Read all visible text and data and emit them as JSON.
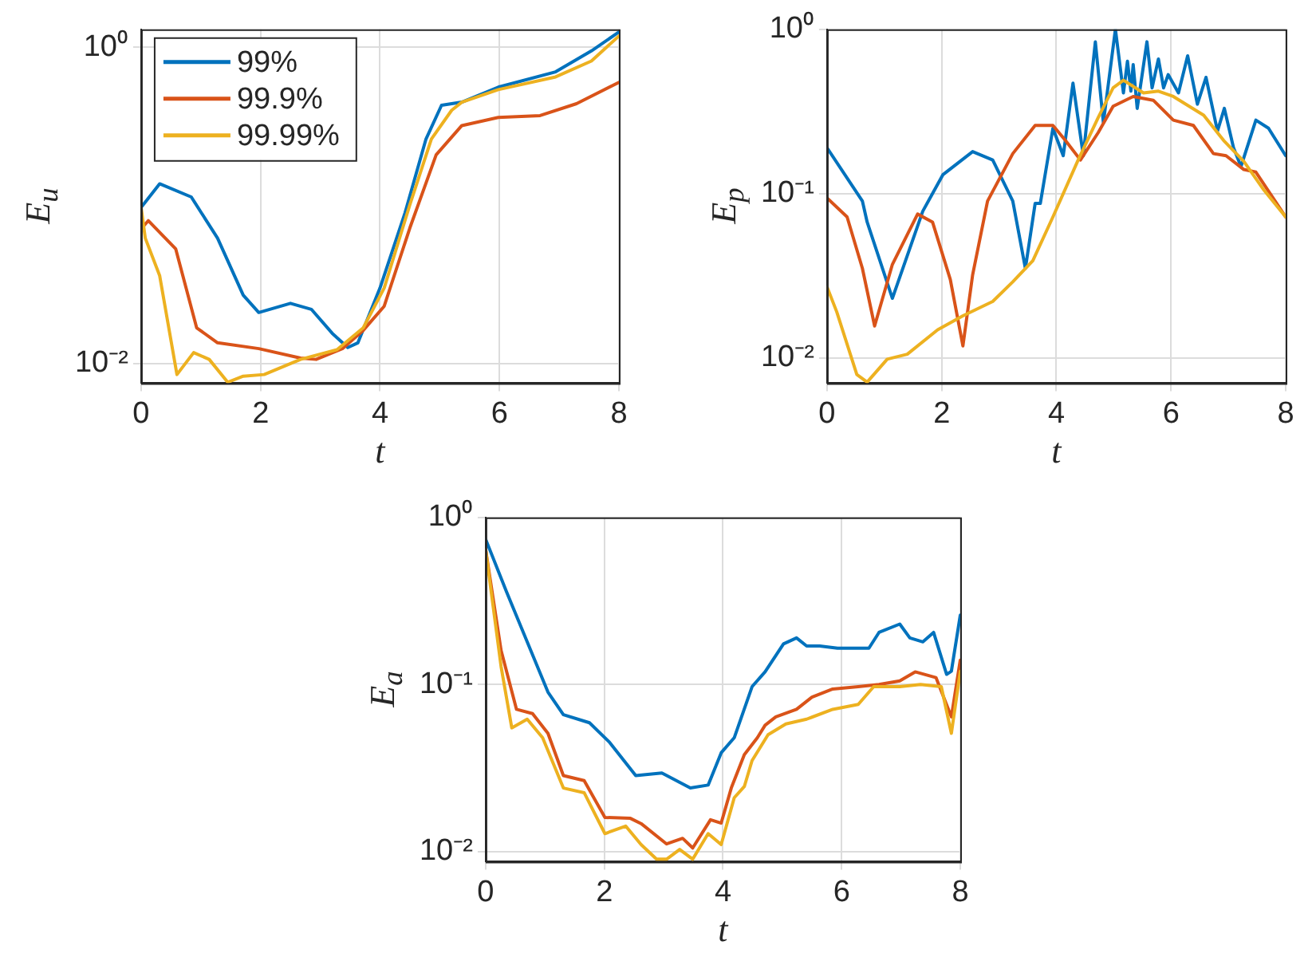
{
  "chart_data": [
    {
      "type": "line",
      "xlabel": "t",
      "ylabel": "E$_{u}$",
      "xlim": [
        0,
        8
      ],
      "xticks": [
        0,
        2,
        4,
        6,
        8
      ],
      "ylim": [
        0.0075,
        1.3
      ],
      "yticks": [
        {
          "value": 0.01,
          "label": "10⁻²"
        },
        {
          "value": 1,
          "label": "10⁰"
        }
      ],
      "log": "y",
      "grid": true,
      "legend": "top left",
      "series": [
        {
          "name": "99%",
          "color": "#0072bd",
          "x": [
            0,
            0.31,
            0.84,
            1.28,
            1.71,
            1.97,
            2.5,
            2.85,
            3.2,
            3.46,
            3.63,
            4,
            4.42,
            4.77,
            5.03,
            5.37,
            5.98,
            6.94,
            7.54,
            8
          ],
          "values": [
            0.097,
            0.137,
            0.113,
            0.062,
            0.027,
            0.021,
            0.024,
            0.022,
            0.0155,
            0.0126,
            0.0135,
            0.03,
            0.09,
            0.263,
            0.43,
            0.45,
            0.56,
            0.7,
            0.95,
            1.25
          ]
        },
        {
          "name": "99.9%",
          "color": "#d95319",
          "x": [
            0,
            0.12,
            0.58,
            0.93,
            1.28,
            1.97,
            2.67,
            2.93,
            3.37,
            3.72,
            4.07,
            4.5,
            4.94,
            5.37,
            5.98,
            6.68,
            7.29,
            8
          ],
          "values": [
            0.071,
            0.08,
            0.053,
            0.0168,
            0.0135,
            0.0124,
            0.0108,
            0.0106,
            0.0124,
            0.0162,
            0.023,
            0.072,
            0.209,
            0.32,
            0.36,
            0.37,
            0.44,
            0.6
          ]
        },
        {
          "name": "99.99%",
          "color": "#edb120",
          "x": [
            0,
            0.07,
            0.31,
            0.6,
            0.88,
            1.14,
            1.45,
            1.71,
            2.06,
            2.67,
            3.28,
            3.72,
            4.07,
            4.5,
            4.86,
            5.2,
            5.37,
            5.98,
            6.94,
            7.54,
            8
          ],
          "values": [
            0.097,
            0.062,
            0.036,
            0.0085,
            0.0117,
            0.0106,
            0.0076,
            0.0083,
            0.0085,
            0.0106,
            0.0122,
            0.0168,
            0.03,
            0.101,
            0.263,
            0.4,
            0.45,
            0.54,
            0.65,
            0.82,
            1.18
          ]
        }
      ]
    },
    {
      "type": "line",
      "xlabel": "t",
      "ylabel": "E$_{p}$",
      "xlim": [
        0,
        8
      ],
      "xticks": [
        0,
        2,
        4,
        6,
        8
      ],
      "ylim": [
        0.007,
        1
      ],
      "yticks": [
        {
          "value": 0.01,
          "label": "10⁻²"
        },
        {
          "value": 0.1,
          "label": "10⁻¹"
        },
        {
          "value": 1,
          "label": "10⁰"
        }
      ],
      "log": "y",
      "grid": true,
      "series": [
        {
          "color": "#0072bd",
          "x": [
            0,
            0.617,
            0.7,
            1.14,
            1.67,
            2.02,
            2.54,
            2.89,
            3.24,
            3.46,
            3.63,
            3.72,
            3.94,
            4.12,
            4.29,
            4.47,
            4.68,
            4.82,
            5.03,
            5.17,
            5.24,
            5.3,
            5.34,
            5.41,
            5.58,
            5.67,
            5.78,
            5.87,
            5.95,
            6.13,
            6.29,
            6.46,
            6.61,
            6.81,
            6.93,
            7.09,
            7.22,
            7.48,
            7.7,
            8
          ],
          "values": [
            0.19,
            0.09,
            0.067,
            0.023,
            0.078,
            0.13,
            0.18,
            0.16,
            0.09,
            0.035,
            0.087,
            0.087,
            0.25,
            0.17,
            0.47,
            0.17,
            0.84,
            0.27,
            1.0,
            0.41,
            0.64,
            0.42,
            0.61,
            0.33,
            0.84,
            0.44,
            0.66,
            0.44,
            0.53,
            0.41,
            0.69,
            0.35,
            0.51,
            0.24,
            0.33,
            0.19,
            0.146,
            0.28,
            0.25,
            0.17
          ]
        },
        {
          "color": "#d95319",
          "x": [
            0,
            0.35,
            0.617,
            0.83,
            1.14,
            1.58,
            1.84,
            2.15,
            2.37,
            2.54,
            2.8,
            3.24,
            3.63,
            3.94,
            4.16,
            4.42,
            4.73,
            4.99,
            5.34,
            5.69,
            6.04,
            6.39,
            6.74,
            6.96,
            7.27,
            7.48,
            8
          ],
          "values": [
            0.094,
            0.072,
            0.035,
            0.0156,
            0.037,
            0.075,
            0.067,
            0.03,
            0.0118,
            0.032,
            0.09,
            0.175,
            0.26,
            0.26,
            0.21,
            0.16,
            0.235,
            0.34,
            0.39,
            0.37,
            0.28,
            0.26,
            0.175,
            0.17,
            0.14,
            0.135,
            0.072
          ]
        },
        {
          "color": "#edb120",
          "x": [
            0,
            0.17,
            0.52,
            0.7,
            1.05,
            1.4,
            1.93,
            2.37,
            2.89,
            3.24,
            3.59,
            3.94,
            4.38,
            4.73,
            4.99,
            5.17,
            5.52,
            5.78,
            6.04,
            6.57,
            6.92,
            7.27,
            7.62,
            8
          ],
          "values": [
            0.027,
            0.019,
            0.0079,
            0.0071,
            0.0098,
            0.0105,
            0.0148,
            0.018,
            0.022,
            0.029,
            0.039,
            0.072,
            0.16,
            0.29,
            0.44,
            0.49,
            0.41,
            0.42,
            0.39,
            0.3,
            0.21,
            0.157,
            0.105,
            0.072
          ]
        }
      ]
    },
    {
      "type": "line",
      "xlabel": "t",
      "ylabel": "E$_{a}$",
      "xlim": [
        0,
        8
      ],
      "xticks": [
        0,
        2,
        4,
        6,
        8
      ],
      "ylim": [
        0.0087,
        1
      ],
      "yticks": [
        {
          "value": 0.01,
          "label": "10⁻²"
        },
        {
          "value": 0.1,
          "label": "10⁻¹"
        },
        {
          "value": 1,
          "label": "10⁰"
        }
      ],
      "log": "y",
      "grid": true,
      "series": [
        {
          "color": "#0072bd",
          "x": [
            0,
            0.35,
            0.7,
            1.05,
            1.31,
            1.75,
            2.09,
            2.53,
            2.97,
            3.45,
            3.75,
            3.97,
            4.19,
            4.49,
            4.71,
            5.02,
            5.24,
            5.41,
            5.63,
            5.93,
            6.46,
            6.63,
            6.98,
            7.15,
            7.37,
            7.55,
            7.77,
            7.85,
            8
          ],
          "values": [
            0.74,
            0.36,
            0.18,
            0.09,
            0.066,
            0.059,
            0.045,
            0.0285,
            0.0295,
            0.024,
            0.025,
            0.039,
            0.048,
            0.097,
            0.119,
            0.175,
            0.19,
            0.17,
            0.17,
            0.165,
            0.165,
            0.205,
            0.23,
            0.19,
            0.18,
            0.205,
            0.115,
            0.12,
            0.26
          ]
        },
        {
          "color": "#d95319",
          "x": [
            0,
            0.26,
            0.52,
            0.79,
            1.05,
            1.31,
            1.66,
            2.01,
            2.44,
            2.62,
            3.05,
            3.32,
            3.49,
            3.79,
            3.97,
            4.14,
            4.36,
            4.58,
            4.71,
            4.89,
            5.24,
            5.5,
            5.85,
            6.28,
            6.63,
            6.98,
            7.24,
            7.59,
            7.85,
            8
          ],
          "values": [
            0.64,
            0.16,
            0.071,
            0.067,
            0.051,
            0.0285,
            0.0266,
            0.016,
            0.0158,
            0.0147,
            0.0111,
            0.012,
            0.0105,
            0.0155,
            0.0148,
            0.024,
            0.038,
            0.048,
            0.057,
            0.064,
            0.071,
            0.084,
            0.094,
            0.097,
            0.1,
            0.105,
            0.119,
            0.11,
            0.064,
            0.14
          ]
        },
        {
          "color": "#edb120",
          "x": [
            0,
            0.26,
            0.44,
            0.7,
            0.96,
            1.31,
            1.66,
            2.01,
            2.36,
            2.62,
            2.88,
            3.05,
            3.27,
            3.49,
            3.75,
            3.97,
            4.19,
            4.36,
            4.49,
            4.76,
            5.06,
            5.41,
            5.85,
            6.28,
            6.54,
            6.98,
            7.33,
            7.68,
            7.85,
            8
          ],
          "values": [
            0.64,
            0.128,
            0.055,
            0.062,
            0.048,
            0.024,
            0.0225,
            0.0128,
            0.0142,
            0.011,
            0.009,
            0.009,
            0.0103,
            0.009,
            0.0128,
            0.011,
            0.021,
            0.0245,
            0.035,
            0.05,
            0.058,
            0.062,
            0.071,
            0.076,
            0.097,
            0.097,
            0.1,
            0.097,
            0.051,
            0.12
          ]
        }
      ]
    }
  ]
}
